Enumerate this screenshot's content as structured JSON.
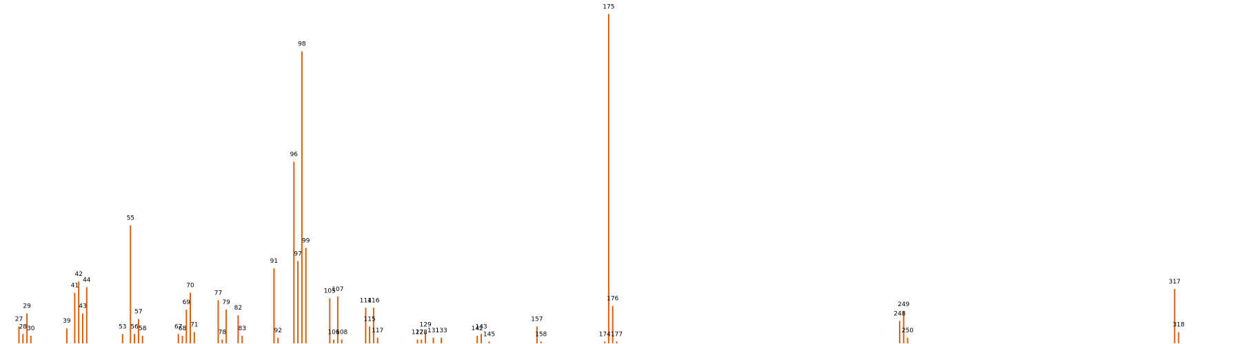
{
  "chart_data": {
    "type": "bar",
    "color": "#d95f0e",
    "ylim": [
      0,
      175
    ],
    "x": [
      27,
      28,
      29,
      30,
      39,
      41,
      42,
      43,
      44,
      53,
      55,
      56,
      57,
      58,
      67,
      68,
      69,
      70,
      71,
      77,
      78,
      79,
      82,
      83,
      91,
      92,
      96,
      97,
      98,
      99,
      105,
      106,
      107,
      108,
      114,
      115,
      116,
      117,
      127,
      128,
      129,
      131,
      133,
      142,
      143,
      145,
      157,
      158,
      174,
      175,
      176,
      177,
      248,
      249,
      250,
      317,
      318
    ],
    "labels": [
      "27",
      "28",
      "29",
      "30",
      "39",
      "41",
      "42",
      "43",
      "44",
      "53",
      "55",
      "56",
      "57",
      "58",
      "67",
      "68",
      "69",
      "70",
      "71",
      "77",
      "78",
      "79",
      "82",
      "83",
      "91",
      "92",
      "96",
      "97",
      "98",
      "99",
      "105",
      "106",
      "107",
      "108",
      "114",
      "115",
      "116",
      "117",
      "127",
      "128",
      "129",
      "131",
      "133",
      "142",
      "143",
      "145",
      "157",
      "158",
      "174",
      "175",
      "176",
      "177",
      "248",
      "249",
      "250",
      "317",
      "318"
    ],
    "values": [
      9,
      5,
      16,
      4,
      8,
      27,
      33,
      16,
      30,
      5,
      63,
      5,
      13,
      4,
      5,
      4,
      18,
      27,
      6,
      23,
      2,
      18,
      15,
      4,
      40,
      3,
      97,
      44,
      156,
      51,
      24,
      2,
      25,
      2,
      19,
      9,
      19,
      3,
      2,
      2,
      6,
      3,
      3,
      4,
      5,
      1,
      9,
      1,
      1,
      176,
      20,
      1,
      12,
      17,
      3,
      29,
      6
    ]
  }
}
